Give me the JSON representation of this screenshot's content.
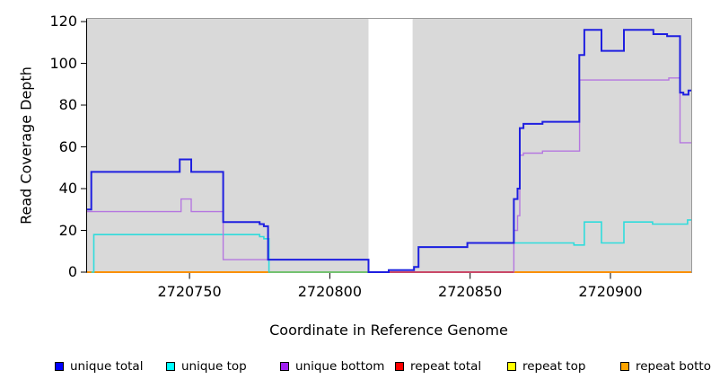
{
  "figure": {
    "background": "#ffffff",
    "plot_background": "#d9d9d9",
    "plot_border_color": "#999999",
    "axis_color": "#000000",
    "mask_band_color": "#ffffff"
  },
  "chart_data": {
    "type": "line",
    "line_style": "step",
    "title": "",
    "xlabel": "Coordinate in Reference Genome",
    "ylabel": "Read Coverage Depth",
    "xlim": [
      2720713.5,
      2720928.8
    ],
    "ylim": [
      0,
      121.3
    ],
    "xticks": [
      2720750,
      2720800,
      2720850,
      2720900
    ],
    "yticks": [
      0,
      20,
      40,
      60,
      80,
      100,
      120
    ],
    "grid": false,
    "legend_position": "bottom",
    "mask_region": {
      "from": 2720813.8,
      "to": 2720829.5
    },
    "series": [
      {
        "name": "unique total",
        "line_color": "#1f1fe0",
        "legend_color": "#0000ff",
        "line_width": 2,
        "points": [
          [
            2720713.5,
            30
          ],
          [
            2720715,
            48
          ],
          [
            2720746.5,
            54
          ],
          [
            2720750.6,
            48
          ],
          [
            2720762,
            24
          ],
          [
            2720775,
            23
          ],
          [
            2720776.5,
            22
          ],
          [
            2720778,
            6
          ],
          [
            2720813.8,
            0
          ],
          [
            2720821,
            1
          ],
          [
            2720830,
            2.5
          ],
          [
            2720831.6,
            12
          ],
          [
            2720849,
            14
          ],
          [
            2720865.6,
            35
          ],
          [
            2720866.9,
            40
          ],
          [
            2720867.7,
            69
          ],
          [
            2720869,
            71
          ],
          [
            2720875.8,
            72
          ],
          [
            2720888.9,
            104
          ],
          [
            2720890.7,
            116
          ],
          [
            2720896.8,
            106
          ],
          [
            2720904.8,
            116
          ],
          [
            2720915.3,
            114
          ],
          [
            2720920.2,
            113
          ],
          [
            2720924.8,
            86
          ],
          [
            2720926,
            85
          ],
          [
            2720927.8,
            87
          ]
        ]
      },
      {
        "name": "unique top",
        "line_color": "#2fdcdc",
        "legend_color": "#00ffff",
        "line_width": 1.6,
        "points": [
          [
            2720715,
            0
          ],
          [
            2720715.9,
            18
          ],
          [
            2720775,
            17
          ],
          [
            2720776.5,
            16
          ],
          [
            2720778.3,
            0
          ],
          [
            2720821,
            1
          ],
          [
            2720830,
            2.5
          ],
          [
            2720831.6,
            12
          ],
          [
            2720849,
            14
          ],
          [
            2720887,
            13
          ],
          [
            2720890.7,
            24
          ],
          [
            2720896.8,
            14
          ],
          [
            2720904.8,
            24
          ],
          [
            2720915,
            23
          ],
          [
            2720927.5,
            25
          ]
        ]
      },
      {
        "name": "unique bottom",
        "line_color": "#b577e0",
        "legend_color": "#a020f0",
        "line_width": 1.4,
        "points": [
          [
            2720713.5,
            29
          ],
          [
            2720747,
            35
          ],
          [
            2720750.6,
            29
          ],
          [
            2720762,
            6
          ],
          [
            2720813.8,
            0
          ],
          [
            2720865.6,
            20
          ],
          [
            2720866.9,
            27
          ],
          [
            2720867.7,
            56
          ],
          [
            2720869,
            57
          ],
          [
            2720875.8,
            58
          ],
          [
            2720889,
            92
          ],
          [
            2720920.8,
            93
          ],
          [
            2720924.8,
            62
          ]
        ]
      },
      {
        "name": "repeat total",
        "line_color": "#dd2233",
        "legend_color": "#ff0000",
        "line_width": 1.4,
        "points": [
          [
            2720713.5,
            0
          ]
        ]
      },
      {
        "name": "repeat top",
        "line_color": "#f2f200",
        "legend_color": "#ffff00",
        "line_width": 1.4,
        "points": [
          [
            2720713.5,
            0
          ]
        ]
      },
      {
        "name": "repeat bottom",
        "line_color": "#ff8c00",
        "legend_color": "#ffa500",
        "line_width": 1.8,
        "points": [
          [
            2720713.5,
            0
          ]
        ]
      }
    ],
    "baseline_overlays": [
      {
        "from": 2720778.3,
        "to": 2720813.8,
        "color": "#6fc46f"
      },
      {
        "from": 2720813.8,
        "to": 2720865.6,
        "color": "#c93f66"
      }
    ]
  },
  "legend": {
    "items": [
      {
        "label": "unique total",
        "color": "#0000ff"
      },
      {
        "label": "unique top",
        "color": "#00ffff"
      },
      {
        "label": "unique bottom",
        "color": "#a020f0"
      },
      {
        "label": "repeat total",
        "color": "#ff0000"
      },
      {
        "label": "repeat top",
        "color": "#ffff00"
      },
      {
        "label": "repeat bottom",
        "color": "#ffa500"
      }
    ]
  }
}
